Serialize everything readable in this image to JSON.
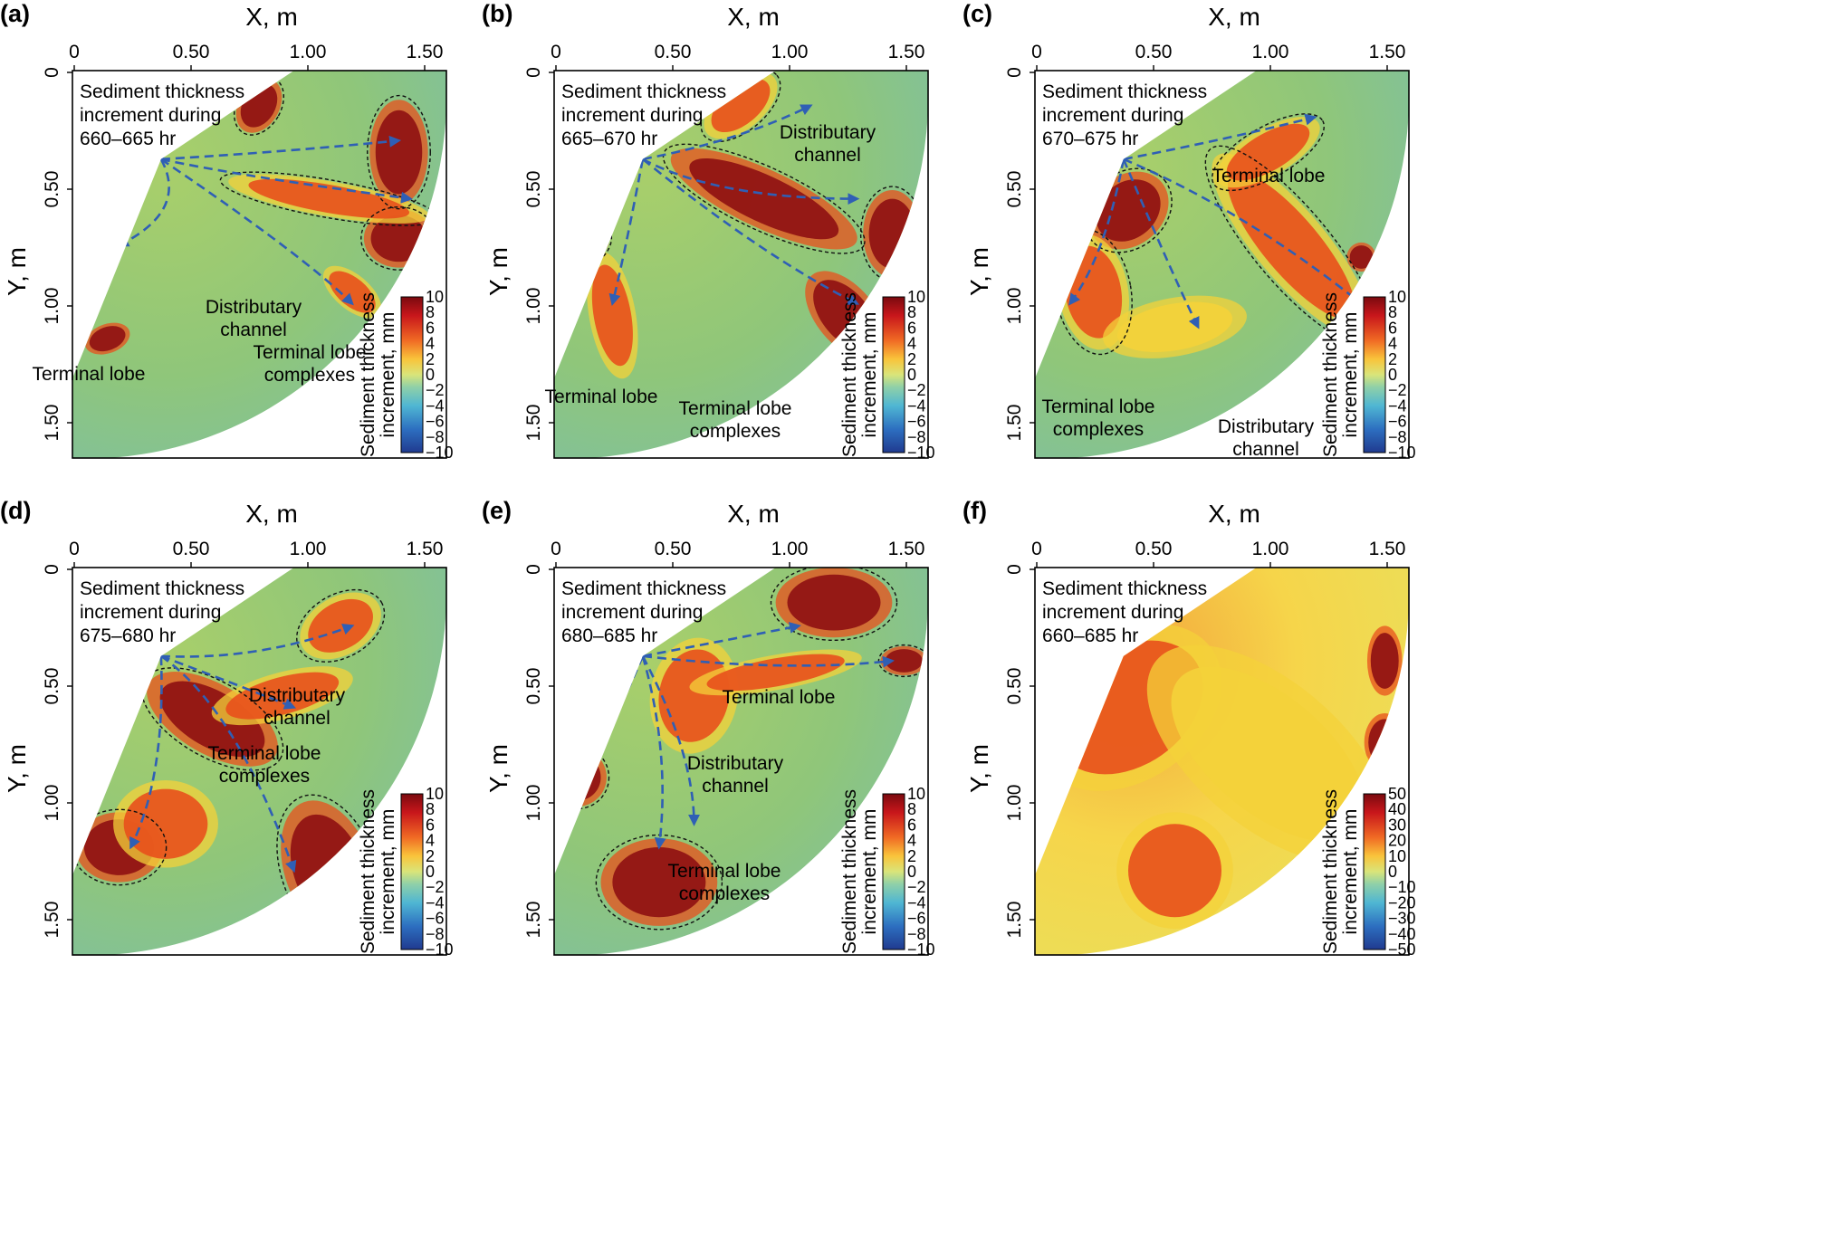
{
  "figure": {
    "x_axis_label": "X, m",
    "y_axis_label": "Y, m",
    "x_ticks": [
      "0",
      "0.50",
      "1.00",
      "1.50"
    ],
    "y_ticks": [
      "0",
      "0.50",
      "1.00",
      "1.50"
    ],
    "colorbar_label": "Sediment thickness increment, mm",
    "colorbar_label_line1": "Sediment thickness",
    "colorbar_label_line2": "increment, mm",
    "colorbar_ticks_small": [
      "10",
      "8",
      "6",
      "4",
      "2",
      "0",
      "−2",
      "−4",
      "−6",
      "−8",
      "−10"
    ],
    "colorbar_ticks_large": [
      "50",
      "40",
      "30",
      "20",
      "10",
      "0",
      "−10",
      "−20",
      "−30",
      "−40",
      "−50"
    ],
    "colors": {
      "background": "#8fc67a",
      "channel_arrow": "#2f5fb5",
      "lobe_outline": "#111111",
      "deposit_high": "#8e0f12",
      "deposit_mid": "#e8501c",
      "deposit_low": "#f4d23a",
      "erosion": "#3a7fd0"
    }
  },
  "panels": [
    {
      "letter": "(a)",
      "title_line1": "Sediment thickness",
      "title_line2": "increment during",
      "title_line3": "660–665 hr",
      "annotations": [
        "Distributary channel",
        "Terminal lobe complexes",
        "Terminal lobe"
      ]
    },
    {
      "letter": "(b)",
      "title_line1": "Sediment thickness",
      "title_line2": "increment during",
      "title_line3": "665–670 hr",
      "annotations": [
        "Distributary channel",
        "Terminal lobe",
        "Terminal lobe complexes"
      ]
    },
    {
      "letter": "(c)",
      "title_line1": "Sediment thickness",
      "title_line2": "increment during",
      "title_line3": "670–675 hr",
      "annotations": [
        "Terminal lobe",
        "Terminal lobe complexes",
        "Distributary channel"
      ]
    },
    {
      "letter": "(d)",
      "title_line1": "Sediment thickness",
      "title_line2": "increment during",
      "title_line3": "675–680 hr",
      "annotations": [
        "Distributary channel",
        "Terminal lobe complexes"
      ]
    },
    {
      "letter": "(e)",
      "title_line1": "Sediment thickness",
      "title_line2": "increment during",
      "title_line3": "680–685 hr",
      "annotations": [
        "Terminal lobe",
        "Distributary channel",
        "Terminal lobe complexes"
      ]
    },
    {
      "letter": "(f)",
      "title_line1": "Sediment thickness",
      "title_line2": "increment during",
      "title_line3": "660–685 hr",
      "annotations": []
    }
  ]
}
